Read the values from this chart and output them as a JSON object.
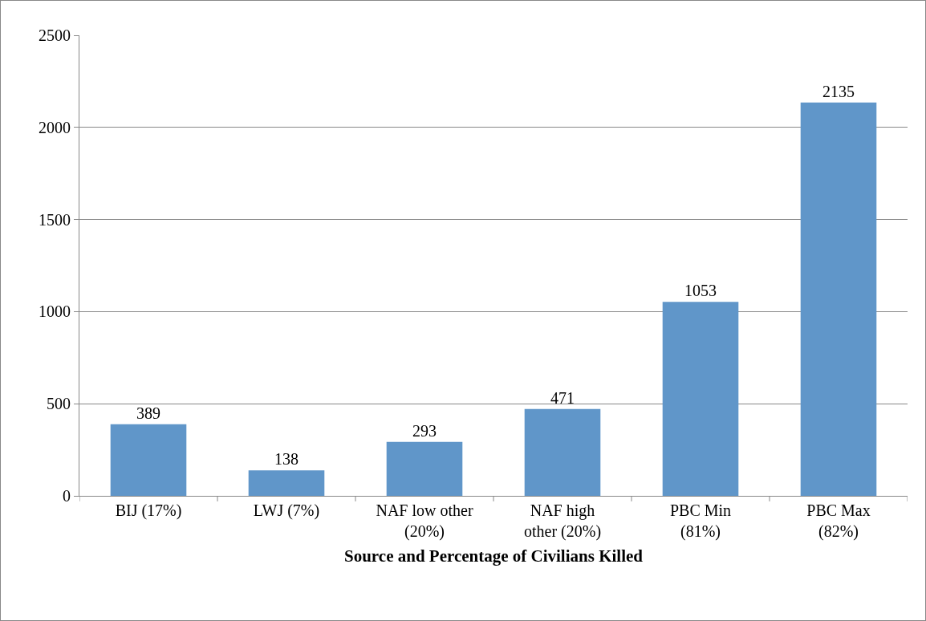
{
  "chart_data": {
    "type": "bar",
    "xlabel": "Source and Percentage of Civilians Killed",
    "categories": [
      "BIJ (17%)",
      "LWJ (7%)",
      "NAF low other\n(20%)",
      "NAF high\nother (20%)",
      "PBC Min\n(81%)",
      "PBC Max\n(82%)"
    ],
    "values": [
      389,
      138,
      293,
      471,
      1053,
      2135
    ],
    "color": "#6096c9",
    "ylim": [
      0,
      2500
    ],
    "yticks": [
      0,
      500,
      1000,
      1500,
      2000,
      2500
    ],
    "grid": "y",
    "data_labels": true,
    "legend": false
  }
}
